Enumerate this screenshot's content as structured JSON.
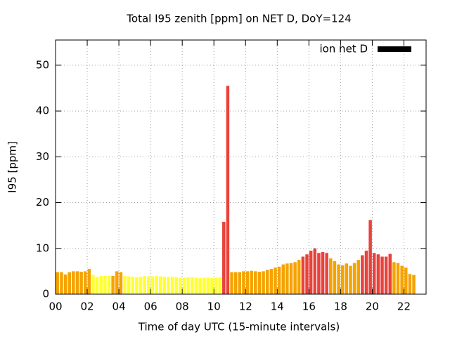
{
  "chart_data": {
    "type": "bar",
    "title": "Total I95 zenith [ppm] on NET D, DoY=124",
    "xlabel": "Time of day UTC (15-minute intervals)",
    "ylabel": "I95 [ppm]",
    "legend": "top-right",
    "grid": true,
    "xlim": [
      0,
      23.4
    ],
    "ylim": [
      0,
      55.5
    ],
    "xticks": [
      {
        "value": 0,
        "label": "00"
      },
      {
        "value": 2,
        "label": "02"
      },
      {
        "value": 4,
        "label": "04"
      },
      {
        "value": 6,
        "label": "06"
      },
      {
        "value": 8,
        "label": "08"
      },
      10,
      12,
      14,
      16,
      18,
      20,
      22
    ],
    "yticks": [
      0,
      10,
      20,
      30,
      40,
      50
    ],
    "x": [
      0.125,
      0.375,
      0.625,
      0.875,
      1.125,
      1.375,
      1.625,
      1.875,
      2.125,
      2.375,
      2.625,
      2.875,
      3.125,
      3.375,
      3.625,
      3.875,
      4.125,
      4.375,
      4.625,
      4.875,
      5.125,
      5.375,
      5.625,
      5.875,
      6.125,
      6.375,
      6.625,
      6.875,
      7.125,
      7.375,
      7.625,
      7.875,
      8.125,
      8.375,
      8.625,
      8.875,
      9.125,
      9.375,
      9.625,
      9.875,
      10.125,
      10.375,
      10.625,
      10.875,
      11.125,
      11.375,
      11.625,
      11.875,
      12.125,
      12.375,
      12.625,
      12.875,
      13.125,
      13.375,
      13.625,
      13.875,
      14.125,
      14.375,
      14.625,
      14.875,
      15.125,
      15.375,
      15.625,
      15.875,
      16.125,
      16.375,
      16.625,
      16.875,
      17.125,
      17.375,
      17.625,
      17.875,
      18.125,
      18.375,
      18.625,
      18.875,
      19.125,
      19.375,
      19.625,
      19.875,
      20.125,
      20.375,
      20.625,
      20.875,
      21.125,
      21.375,
      21.625,
      21.875,
      22.125,
      22.375,
      22.625
    ],
    "series": [
      {
        "name": "ion net D",
        "color": "#000000",
        "values": [
          4.8,
          4.8,
          4.3,
          4.8,
          5.0,
          5.0,
          4.9,
          5.0,
          5.5,
          4.2,
          3.8,
          4.0,
          4.0,
          4.0,
          4.0,
          5.0,
          4.8,
          4.0,
          3.9,
          3.8,
          3.7,
          3.8,
          4.0,
          3.9,
          3.9,
          4.0,
          3.9,
          3.8,
          3.8,
          3.8,
          3.7,
          3.6,
          3.6,
          3.7,
          3.7,
          3.6,
          3.5,
          3.6,
          3.6,
          3.5,
          3.6,
          3.7,
          15.8,
          45.5,
          4.8,
          4.8,
          4.8,
          5.0,
          5.0,
          5.1,
          5.0,
          4.9,
          5.0,
          5.3,
          5.5,
          5.8,
          6.0,
          6.5,
          6.7,
          6.8,
          7.0,
          7.5,
          8.2,
          8.7,
          9.5,
          10.0,
          9.0,
          9.2,
          9.0,
          7.8,
          7.2,
          6.5,
          6.3,
          6.7,
          6.2,
          6.8,
          7.5,
          8.5,
          9.5,
          16.2,
          9.0,
          8.7,
          8.2,
          8.2,
          8.8,
          7.0,
          6.8,
          6.2,
          5.8,
          4.4,
          4.2
        ],
        "colors": [
          "#f5a300",
          "#f5a300",
          "#f5a300",
          "#f5a300",
          "#f5a300",
          "#f5a300",
          "#f5a300",
          "#f5a300",
          "#f5a300",
          "#ffff33",
          "#ffff33",
          "#ffff33",
          "#ffff33",
          "#ffff33",
          "#f5a300",
          "#f5a300",
          "#f5a300",
          "#ffff33",
          "#ffff33",
          "#ffff33",
          "#ffff33",
          "#ffff33",
          "#ffff33",
          "#ffff33",
          "#ffff33",
          "#ffff33",
          "#ffff33",
          "#ffff33",
          "#ffff33",
          "#ffff33",
          "#ffff33",
          "#ffff33",
          "#ffff33",
          "#ffff33",
          "#ffff33",
          "#ffff33",
          "#ffff33",
          "#ffff33",
          "#ffff33",
          "#ffff33",
          "#ffff33",
          "#ffff33",
          "#e8423c",
          "#e8423c",
          "#f5a300",
          "#f5a300",
          "#f5a300",
          "#f5a300",
          "#f5a300",
          "#f5a300",
          "#f5a300",
          "#f5a300",
          "#f5a300",
          "#f5a300",
          "#f5a300",
          "#f5a300",
          "#f5a300",
          "#f5a300",
          "#f5a300",
          "#f5a300",
          "#f5a300",
          "#f5a300",
          "#e8423c",
          "#e8423c",
          "#e8423c",
          "#e8423c",
          "#e8423c",
          "#e8423c",
          "#e8423c",
          "#f5a300",
          "#f5a300",
          "#f5a300",
          "#f5a300",
          "#f5a300",
          "#f5a300",
          "#f5a300",
          "#f5a300",
          "#e8423c",
          "#e8423c",
          "#e8423c",
          "#e8423c",
          "#e8423c",
          "#e8423c",
          "#e8423c",
          "#e8423c",
          "#f5a300",
          "#f5a300",
          "#f5a300",
          "#f5a300",
          "#f5a300",
          "#f5a300"
        ]
      }
    ]
  }
}
